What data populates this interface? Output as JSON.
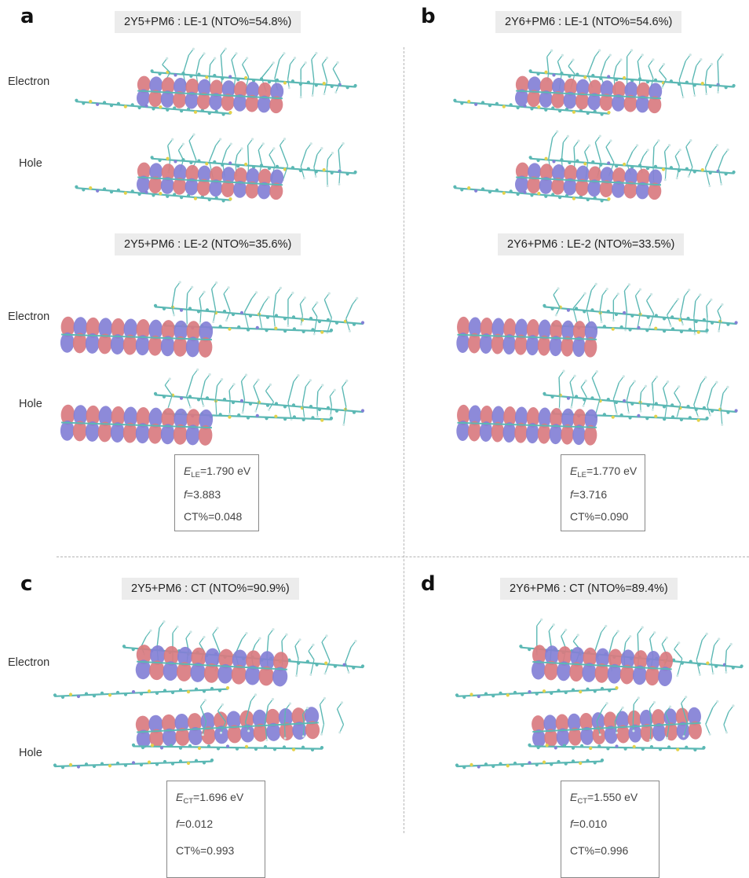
{
  "colors": {
    "lobe_red": "#d97b80",
    "lobe_blue": "#8380d6",
    "backbone": "#5bb8b4",
    "sulfur": "#e4d24a",
    "title_bg": "#ececec"
  },
  "labels": {
    "electron": "Electron",
    "hole": "Hole"
  },
  "panels": {
    "a": {
      "letter": "a",
      "title1": "2Y5+PM6 : LE-1 (NTO%=54.8%)",
      "title2": "2Y5+PM6 : LE-2 (NTO%=35.6%)",
      "info": {
        "energy_symbol": "E",
        "energy_sub": "LE",
        "energy_value": "=1.790 eV",
        "f_symbol": "f",
        "f_value": "=3.883",
        "ct": "CT%=0.048"
      }
    },
    "b": {
      "letter": "b",
      "title1": "2Y6+PM6 : LE-1 (NTO%=54.6%)",
      "title2": "2Y6+PM6 : LE-2 (NTO%=33.5%)",
      "info": {
        "energy_symbol": "E",
        "energy_sub": "LE",
        "energy_value": "=1.770 eV",
        "f_symbol": "f",
        "f_value": "=3.716",
        "ct": "CT%=0.090"
      }
    },
    "c": {
      "letter": "c",
      "title1": "2Y5+PM6 : CT (NTO%=90.9%)",
      "info": {
        "energy_symbol": "E",
        "energy_sub": "CT",
        "energy_value": "=1.696 eV",
        "f_symbol": "f",
        "f_value": "=0.012",
        "ct": "CT%=0.993"
      }
    },
    "d": {
      "letter": "d",
      "title1": "2Y6+PM6 : CT (NTO%=89.4%)",
      "info": {
        "energy_symbol": "E",
        "energy_sub": "CT",
        "energy_value": "=1.550 eV",
        "f_symbol": "f",
        "f_value": "=0.010",
        "ct": "CT%=0.996"
      }
    }
  }
}
